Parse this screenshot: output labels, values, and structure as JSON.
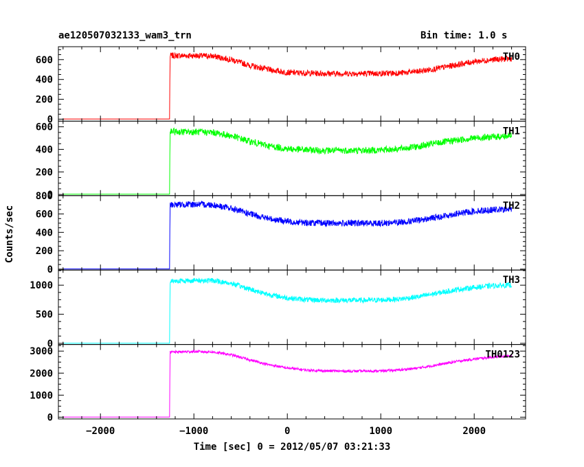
{
  "header": {
    "title": "ae120507032133_wam3_trn",
    "bin_time": "Bin time: 1.0 s"
  },
  "chart_data": {
    "type": "line",
    "title": "ae120507032133_wam3_trn",
    "subtitle": "Bin time: 1.0 s",
    "xlabel": "Time [sec] 0 = 2012/05/07 03:21:33",
    "ylabel": "Counts/sec",
    "xlim": [
      -2450,
      2550
    ],
    "xticks": [
      -2000,
      -1000,
      0,
      1000,
      2000
    ],
    "xtick_labels": [
      "−2000",
      "−1000",
      "0",
      "1000",
      "2000"
    ],
    "grid": false,
    "panels": [
      {
        "name": "TH0",
        "color": "#ff0000",
        "ylim": [
          -20,
          730
        ],
        "yticks": [
          0,
          200,
          400,
          600
        ],
        "ytick_labels": [
          "0",
          "200",
          "400",
          "600"
        ],
        "x": [
          -2400,
          -1260,
          -1255,
          -1000,
          -800,
          -600,
          -400,
          -200,
          0,
          200,
          400,
          600,
          800,
          1000,
          1200,
          1400,
          1600,
          1800,
          2000,
          2200,
          2400
        ],
        "y": [
          2,
          2,
          640,
          640,
          635,
          600,
          540,
          500,
          470,
          465,
          460,
          460,
          460,
          460,
          465,
          480,
          510,
          545,
          580,
          600,
          610
        ],
        "noise": 30
      },
      {
        "name": "TH1",
        "color": "#00ff00",
        "ylim": [
          -10,
          650
        ],
        "yticks": [
          0,
          200,
          400,
          600
        ],
        "ytick_labels": [
          "0",
          "200",
          "400",
          "600"
        ],
        "x": [
          -2400,
          -1260,
          -1255,
          -1000,
          -800,
          -600,
          -400,
          -200,
          0,
          200,
          400,
          600,
          800,
          1000,
          1200,
          1400,
          1600,
          1800,
          2000,
          2200,
          2400
        ],
        "y": [
          2,
          2,
          555,
          555,
          550,
          520,
          470,
          430,
          405,
          395,
          390,
          390,
          390,
          395,
          405,
          425,
          455,
          480,
          500,
          510,
          520
        ],
        "noise": 30
      },
      {
        "name": "TH2",
        "color": "#0000ff",
        "ylim": [
          -10,
          800
        ],
        "yticks": [
          0,
          200,
          400,
          600,
          800
        ],
        "ytick_labels": [
          "0",
          "200",
          "400",
          "600",
          "800"
        ],
        "x": [
          -2400,
          -1260,
          -1255,
          -1000,
          -800,
          -600,
          -400,
          -200,
          0,
          200,
          400,
          600,
          800,
          1000,
          1200,
          1400,
          1600,
          1800,
          2000,
          2200,
          2400
        ],
        "y": [
          2,
          2,
          700,
          705,
          700,
          660,
          600,
          550,
          520,
          505,
          500,
          500,
          500,
          500,
          510,
          530,
          565,
          600,
          630,
          645,
          650
        ],
        "noise": 35
      },
      {
        "name": "TH3",
        "color": "#00ffff",
        "ylim": [
          -20,
          1260
        ],
        "yticks": [
          0,
          500,
          1000
        ],
        "ytick_labels": [
          "0",
          "500",
          "1000"
        ],
        "x": [
          -2400,
          -1260,
          -1255,
          -1000,
          -800,
          -600,
          -400,
          -200,
          0,
          200,
          400,
          600,
          800,
          1000,
          1200,
          1400,
          1600,
          1800,
          2000,
          2200,
          2400
        ],
        "y": [
          3,
          3,
          1070,
          1080,
          1080,
          1030,
          930,
          840,
          780,
          750,
          740,
          740,
          740,
          745,
          760,
          800,
          860,
          920,
          960,
          990,
          1000
        ],
        "noise": 45
      },
      {
        "name": "TH0123",
        "color": "#ff00ff",
        "ylim": [
          -80,
          3300
        ],
        "yticks": [
          0,
          1000,
          2000,
          3000
        ],
        "ytick_labels": [
          "0",
          "1000",
          "2000",
          "3000"
        ],
        "x": [
          -2400,
          -1260,
          -1255,
          -1000,
          -800,
          -600,
          -400,
          -200,
          0,
          200,
          400,
          600,
          800,
          1000,
          1200,
          1400,
          1600,
          1800,
          2000,
          2200,
          2400
        ],
        "y": [
          5,
          5,
          2950,
          2980,
          2960,
          2830,
          2600,
          2380,
          2230,
          2140,
          2100,
          2090,
          2090,
          2100,
          2140,
          2230,
          2370,
          2520,
          2640,
          2730,
          2780
        ],
        "noise": 60
      }
    ]
  }
}
